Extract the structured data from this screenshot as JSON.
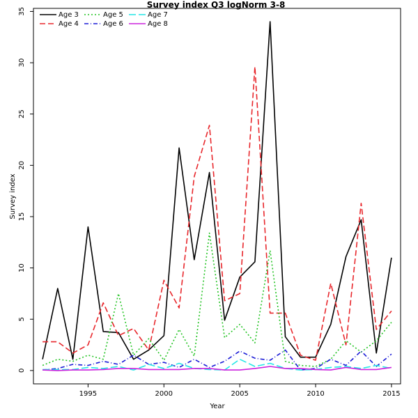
{
  "chart_data": {
    "type": "line",
    "title": "Survey index Q3 logNorm 3-8",
    "xlabel": "Year",
    "ylabel": "Survey index",
    "xlim": [
      1991.4,
      2015.6
    ],
    "ylim": [
      -1.3,
      35.3
    ],
    "xticks": [
      1995,
      2000,
      2005,
      2010,
      2015
    ],
    "yticks": [
      0,
      5,
      10,
      15,
      20,
      25,
      30,
      35
    ],
    "grid": false,
    "legend": "top-left",
    "x": [
      1992,
      1993,
      1994,
      1995,
      1996,
      1997,
      1998,
      1999,
      2000,
      2001,
      2002,
      2003,
      2004,
      2005,
      2006,
      2007,
      2008,
      2009,
      2010,
      2011,
      2012,
      2013,
      2014,
      2015
    ],
    "series": [
      {
        "name": "Age 3",
        "color": "#000000",
        "dash": "solid",
        "values": [
          1.1,
          8.0,
          1.1,
          14.0,
          3.8,
          3.7,
          1.1,
          2.0,
          3.4,
          21.7,
          10.8,
          19.3,
          4.9,
          9.1,
          10.6,
          34.0,
          3.3,
          1.3,
          1.3,
          4.5,
          11.1,
          14.7,
          1.7,
          11.0
        ]
      },
      {
        "name": "Age 4",
        "color": "#e8262b",
        "dash": "long",
        "values": [
          2.8,
          2.8,
          1.7,
          2.5,
          6.6,
          3.4,
          4.1,
          2.0,
          8.8,
          6.1,
          18.9,
          23.9,
          6.8,
          7.5,
          29.6,
          5.6,
          5.6,
          1.5,
          1.0,
          8.5,
          2.5,
          16.3,
          4.0,
          5.8
        ]
      },
      {
        "name": "Age 5",
        "color": "#22c322",
        "dash": "dotted",
        "values": [
          0.5,
          1.1,
          0.9,
          1.5,
          1.1,
          7.5,
          1.5,
          3.1,
          1.0,
          4.0,
          1.4,
          13.4,
          3.2,
          4.5,
          2.7,
          11.7,
          0.9,
          0.5,
          0.4,
          1.1,
          2.9,
          1.8,
          2.9,
          4.7
        ]
      },
      {
        "name": "Age 6",
        "color": "#1a1ad6",
        "dash": "dashdot",
        "values": [
          0.05,
          0.2,
          0.6,
          0.5,
          0.9,
          0.6,
          1.5,
          0.6,
          0.8,
          0.3,
          1.1,
          0.3,
          0.9,
          1.9,
          1.2,
          1.0,
          2.0,
          0.05,
          0.2,
          1.1,
          0.5,
          1.9,
          0.4,
          1.6
        ]
      },
      {
        "name": "Age 7",
        "color": "#22e6e6",
        "dash": "longdash",
        "values": [
          0.1,
          0.1,
          0.1,
          0.3,
          0.2,
          0.4,
          0.05,
          0.6,
          0.2,
          0.7,
          0.2,
          0.1,
          0.05,
          1.1,
          0.4,
          0.7,
          0.2,
          0.05,
          0.1,
          0.3,
          0.4,
          0.2,
          0.5,
          0.2
        ]
      },
      {
        "name": "Age 8",
        "color": "#cc22dd",
        "dash": "solid",
        "values": [
          0.05,
          0.0,
          0.05,
          0.05,
          0.1,
          0.2,
          0.2,
          0.1,
          0.1,
          0.1,
          0.2,
          0.2,
          0.05,
          0.05,
          0.2,
          0.4,
          0.2,
          0.2,
          0.1,
          0.05,
          0.3,
          0.1,
          0.1,
          0.3
        ]
      }
    ]
  }
}
